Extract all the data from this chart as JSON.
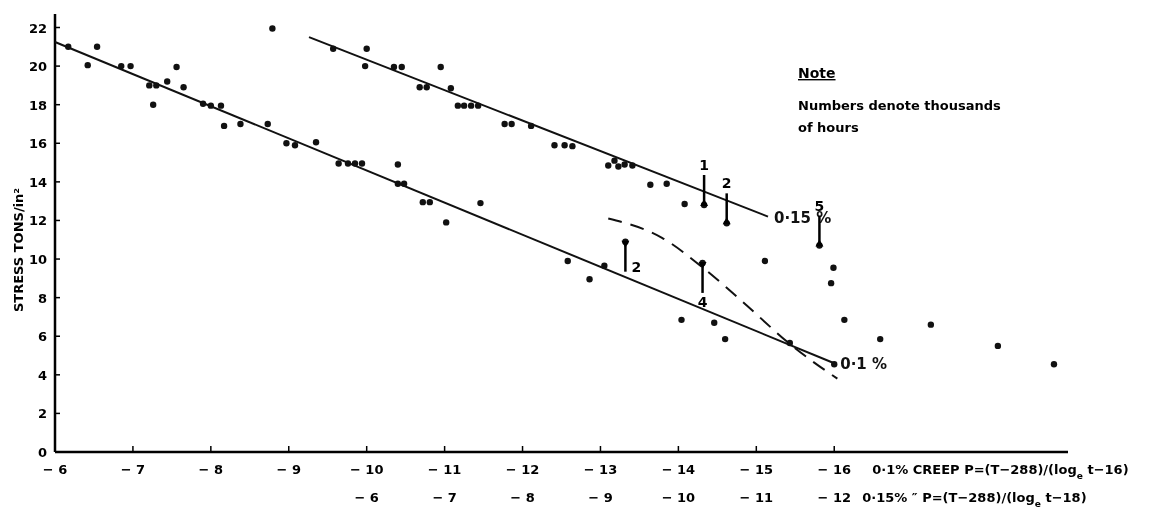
{
  "chart_data": {
    "type": "scatter",
    "ylabel": "STRESS   TONS/in²",
    "xlabel": "0·1% CREEP  P=(T−288)/(log$_{e}$t−16)",
    "x2label": "0·15%   ″   P=(T−288)/(log$_{e}$t−18)",
    "xlim": [
      -6,
      -19
    ],
    "xticks": [
      -6,
      -7,
      -8,
      -9,
      -10,
      -11,
      -12,
      -13,
      -14,
      -15,
      -16
    ],
    "x2lim": [
      -2,
      -15
    ],
    "x2ticks": [
      -6,
      -7,
      -8,
      -9,
      -10,
      -11,
      -12
    ],
    "ylim": [
      0,
      22.7
    ],
    "yticks": [
      0,
      2,
      4,
      6,
      8,
      10,
      12,
      14,
      16,
      18,
      20,
      22
    ],
    "grid": false,
    "series": [
      {
        "marker": "circle",
        "color": "#111111",
        "x": [
          -6.17,
          -6.42,
          -6.54,
          -6.85,
          -6.97,
          -7.21,
          -7.3,
          -7.26,
          -7.44,
          -7.56,
          -7.65,
          -7.9,
          -8.0,
          -8.13,
          -8.17,
          -8.38,
          -8.73,
          -8.79,
          -8.97,
          -9.08,
          -9.35,
          -9.64,
          -9.76,
          -9.85,
          -9.94,
          -10.4,
          -10.4,
          -10.48,
          -10.72,
          -10.81,
          -11.02,
          -11.46,
          -12.58,
          -12.86,
          -13.05,
          -13.32,
          -14.31,
          -15.11,
          -14.04,
          -14.46,
          -14.6,
          -15.43,
          -16.0,
          -15.81,
          -15.99,
          -15.96,
          -16.13,
          -16.59,
          -17.24,
          -18.1,
          -18.82,
          -9.57,
          -9.98,
          -10.0,
          -10.35,
          -10.45,
          -10.95,
          -10.68,
          -10.77,
          -11.08,
          -11.17,
          -11.25,
          -11.34,
          -11.43,
          -11.77,
          -11.86,
          -12.11,
          -12.41,
          -12.54,
          -12.64,
          -13.1,
          -13.18,
          -13.23,
          -13.31,
          -13.41,
          -13.64,
          -13.85,
          -14.08,
          -14.33,
          -14.62
        ],
        "values": [
          21.0,
          20.05,
          21.0,
          20.0,
          20.0,
          19.0,
          19.0,
          18.0,
          19.2,
          19.95,
          18.9,
          18.05,
          17.95,
          17.95,
          16.9,
          17.0,
          17.0,
          21.95,
          16.0,
          15.9,
          16.05,
          14.95,
          14.95,
          14.95,
          14.95,
          13.9,
          14.9,
          13.9,
          12.95,
          12.95,
          11.9,
          12.9,
          9.9,
          8.95,
          9.65,
          10.9,
          9.8,
          9.9,
          6.85,
          6.7,
          5.85,
          5.65,
          4.55,
          10.7,
          9.55,
          8.75,
          6.85,
          5.85,
          6.6,
          5.5,
          4.55,
          20.9,
          20.0,
          20.9,
          19.95,
          19.95,
          19.95,
          18.9,
          18.9,
          18.85,
          17.95,
          17.95,
          17.95,
          17.95,
          17.0,
          17.0,
          16.9,
          15.9,
          15.9,
          15.85,
          14.85,
          15.1,
          14.8,
          14.9,
          14.85,
          13.85,
          13.9,
          12.85,
          12.8,
          11.85
        ]
      },
      {
        "type": "line",
        "name": "0·15 %",
        "color": "#111111",
        "marker": "none",
        "line_style": "solid",
        "x": [
          -9.26,
          -15.15
        ],
        "values": [
          21.5,
          12.2
        ]
      },
      {
        "type": "line",
        "name": "0·1 %",
        "color": "#111111",
        "marker": "none",
        "line_style": "solid",
        "x": [
          -6.0,
          -16.0
        ],
        "values": [
          21.25,
          4.6
        ]
      },
      {
        "type": "line",
        "color": "#111111",
        "marker": "none",
        "line_style": "dashed",
        "x": [
          -13.1,
          -13.79,
          -14.3,
          -14.82,
          -15.46,
          -16.04
        ],
        "values": [
          12.1,
          11.1,
          9.6,
          7.8,
          5.5,
          3.8
        ]
      }
    ],
    "annotations": [
      "Note",
      "Numbers denote thousands of hours",
      {
        "text": "1",
        "x": -14.33,
        "y": 12.8
      },
      {
        "text": "2",
        "x": -14.62,
        "y": 11.85
      },
      {
        "text": "2",
        "x": -13.32,
        "y": 10.9
      },
      {
        "text": "4",
        "x": -14.31,
        "y": 9.8
      },
      {
        "text": "5",
        "x": -15.81,
        "y": 10.7
      }
    ]
  }
}
